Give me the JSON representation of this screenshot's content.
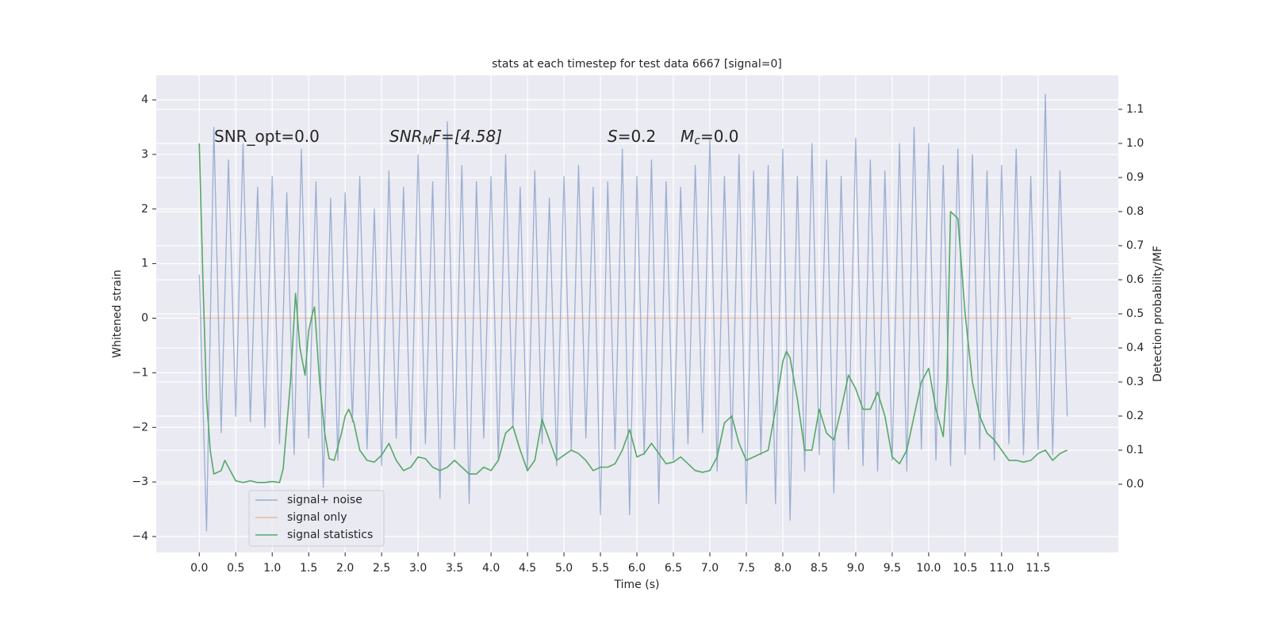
{
  "chart_data": {
    "type": "line",
    "title": "stats at each timestep for test data 6667 [signal=0]",
    "xlabel": "Time (s)",
    "ylabel": "Whitened strain",
    "y2label": "Detection probability/MF",
    "annotations": [
      {
        "base": "SNR_opt=0.0"
      },
      {
        "base": "SNR",
        "sub": "M",
        "rest": "F=[4.58]"
      },
      {
        "base": "S",
        "rest": "=0.2"
      },
      {
        "base": "M",
        "sub": "c",
        "rest": "=0.0"
      }
    ],
    "xlim": [
      -0.59,
      12.6
    ],
    "ylim": [
      -4.29,
      4.45
    ],
    "y2lim": [
      -0.2,
      1.2
    ],
    "xticks": [
      {
        "value": 0,
        "label": "0.0"
      },
      0.5,
      {
        "value": 1,
        "label": "1.0"
      },
      1.5,
      {
        "value": 2,
        "label": "2.0"
      },
      2.5,
      {
        "value": 3,
        "label": "3.0"
      },
      3.5,
      {
        "value": 4,
        "label": "4.0"
      },
      4.5,
      {
        "value": 5,
        "label": "5.0"
      },
      5.5,
      {
        "value": 6,
        "label": "6.0"
      },
      6.5,
      {
        "value": 7,
        "label": "7.0"
      },
      7.5,
      {
        "value": 8,
        "label": "8.0"
      },
      8.5,
      {
        "value": 9,
        "label": "9.0"
      },
      9.5,
      {
        "value": 10,
        "label": "10.0"
      },
      10.5,
      {
        "value": 11,
        "label": "11.0"
      },
      11.5
    ],
    "yticks": [
      {
        "value": -4,
        "label": "−4"
      },
      {
        "value": -3,
        "label": "−3"
      },
      {
        "value": -2,
        "label": "−2"
      },
      {
        "value": -1,
        "label": "−1"
      },
      0,
      1,
      2,
      3,
      4
    ],
    "y2ticks": [
      {
        "value": 0,
        "label": "0.0"
      },
      0.1,
      0.2,
      0.3,
      0.4,
      0.5,
      0.6,
      0.7,
      0.8,
      0.9,
      {
        "value": 1,
        "label": "1.0"
      },
      1.1
    ],
    "grid": true,
    "legend": "lower left",
    "series": [
      {
        "name": "signal+ noise",
        "color": "#4c72b0",
        "opacity": 0.5,
        "x": [
          0,
          0.1,
          0.2,
          0.3,
          0.4,
          0.5,
          0.6,
          0.7,
          0.8,
          0.9,
          1,
          1.1,
          1.2,
          1.3,
          1.4,
          1.5,
          1.6,
          1.7,
          1.8,
          1.9,
          2,
          2.1,
          2.2,
          2.3,
          2.4,
          2.5,
          2.6,
          2.7,
          2.8,
          2.9,
          3,
          3.1,
          3.2,
          3.3,
          3.4,
          3.5,
          3.6,
          3.7,
          3.8,
          3.9,
          4,
          4.1,
          4.2,
          4.3,
          4.4,
          4.5,
          4.6,
          4.7,
          4.8,
          4.9,
          5,
          5.1,
          5.2,
          5.3,
          5.4,
          5.5,
          5.6,
          5.7,
          5.8,
          5.9,
          6,
          6.1,
          6.2,
          6.3,
          6.4,
          6.5,
          6.6,
          6.7,
          6.8,
          6.9,
          7,
          7.1,
          7.2,
          7.3,
          7.4,
          7.5,
          7.6,
          7.7,
          7.8,
          7.9,
          8,
          8.1,
          8.2,
          8.3,
          8.4,
          8.5,
          8.6,
          8.7,
          8.8,
          8.9,
          9,
          9.1,
          9.2,
          9.3,
          9.4,
          9.5,
          9.6,
          9.7,
          9.8,
          9.9,
          10,
          10.1,
          10.2,
          10.3,
          10.4,
          10.5,
          10.6,
          10.7,
          10.8,
          10.9,
          11,
          11.1,
          11.2,
          11.3,
          11.4,
          11.5,
          11.6,
          11.7,
          11.8,
          11.9
        ],
        "values": [
          0.8,
          -3.9,
          3.5,
          -2.1,
          2.9,
          -1.8,
          3.2,
          -1.9,
          2.4,
          -2.0,
          2.6,
          -2.3,
          2.3,
          -2.5,
          3.1,
          -2.2,
          2.5,
          -3.1,
          2.2,
          -2.6,
          2.3,
          -1.9,
          2.6,
          -2.4,
          2.0,
          -2.7,
          2.7,
          -2.2,
          2.4,
          -2.5,
          3.0,
          -2.3,
          2.5,
          -3.3,
          3.6,
          -2.4,
          2.8,
          -3.4,
          2.5,
          -2.2,
          2.6,
          -2.6,
          3.0,
          -2.0,
          2.4,
          -2.8,
          2.7,
          -2.3,
          2.2,
          -2.7,
          2.6,
          -2.4,
          2.8,
          -2.2,
          2.4,
          -3.6,
          2.5,
          -2.4,
          3.1,
          -3.6,
          2.6,
          -2.5,
          2.9,
          -3.4,
          2.5,
          -2.6,
          2.4,
          -2.3,
          2.8,
          -2.1,
          3.3,
          -2.8,
          2.6,
          -2.4,
          3.0,
          -3.4,
          2.7,
          -2.5,
          2.8,
          -3.4,
          3.1,
          -3.7,
          2.6,
          -2.8,
          3.2,
          -2.5,
          2.9,
          -3.2,
          2.6,
          -2.4,
          3.3,
          -2.7,
          2.9,
          -2.8,
          2.7,
          -2.6,
          3.2,
          -2.8,
          3.5,
          -2.4,
          3.2,
          -2.6,
          2.8,
          -2.7,
          3.1,
          -2.5,
          3.0,
          -2.4,
          2.7,
          -2.6,
          2.8,
          -2.3,
          3.1,
          -2.5,
          2.6,
          -2.4,
          4.1,
          -2.5,
          2.7,
          -1.8
        ]
      },
      {
        "name": "signal only",
        "color": "#dd8452",
        "opacity": 0.5,
        "x": [
          0,
          11.95
        ],
        "values": [
          0,
          0
        ]
      },
      {
        "name": "signal statistics",
        "color": "#55a868",
        "opacity": 1,
        "axis": "y2",
        "x": [
          0,
          0.05,
          0.1,
          0.15,
          0.2,
          0.3,
          0.35,
          0.45,
          0.5,
          0.6,
          0.7,
          0.8,
          0.9,
          1.0,
          1.1,
          1.15,
          1.25,
          1.32,
          1.38,
          1.45,
          1.5,
          1.55,
          1.58,
          1.65,
          1.72,
          1.78,
          1.85,
          1.95,
          2.0,
          2.05,
          2.12,
          2.2,
          2.3,
          2.4,
          2.5,
          2.6,
          2.7,
          2.8,
          2.9,
          3.0,
          3.1,
          3.2,
          3.3,
          3.4,
          3.5,
          3.6,
          3.7,
          3.8,
          3.9,
          4.0,
          4.1,
          4.2,
          4.3,
          4.4,
          4.5,
          4.6,
          4.7,
          4.8,
          4.9,
          5.0,
          5.1,
          5.2,
          5.3,
          5.4,
          5.5,
          5.6,
          5.7,
          5.8,
          5.9,
          6.0,
          6.1,
          6.2,
          6.3,
          6.4,
          6.5,
          6.6,
          6.7,
          6.8,
          6.9,
          7.0,
          7.1,
          7.2,
          7.3,
          7.4,
          7.5,
          7.6,
          7.7,
          7.8,
          7.9,
          8.0,
          8.05,
          8.1,
          8.2,
          8.3,
          8.4,
          8.5,
          8.6,
          8.7,
          8.8,
          8.9,
          9.0,
          9.1,
          9.2,
          9.3,
          9.4,
          9.5,
          9.6,
          9.7,
          9.8,
          9.9,
          10.0,
          10.1,
          10.2,
          10.25,
          10.3,
          10.4,
          10.5,
          10.6,
          10.7,
          10.8,
          10.9,
          11.0,
          11.1,
          11.2,
          11.3,
          11.4,
          11.5,
          11.6,
          11.7,
          11.8,
          11.9
        ],
        "values": [
          1.0,
          0.6,
          0.25,
          0.1,
          0.03,
          0.04,
          0.07,
          0.03,
          0.01,
          0.005,
          0.01,
          0.005,
          0.005,
          0.008,
          0.005,
          0.045,
          0.3,
          0.56,
          0.4,
          0.32,
          0.45,
          0.5,
          0.52,
          0.3,
          0.15,
          0.075,
          0.07,
          0.15,
          0.2,
          0.22,
          0.18,
          0.1,
          0.07,
          0.065,
          0.085,
          0.12,
          0.07,
          0.04,
          0.05,
          0.08,
          0.075,
          0.05,
          0.04,
          0.05,
          0.07,
          0.05,
          0.03,
          0.03,
          0.05,
          0.04,
          0.07,
          0.15,
          0.17,
          0.1,
          0.04,
          0.07,
          0.19,
          0.13,
          0.07,
          0.085,
          0.1,
          0.09,
          0.07,
          0.04,
          0.05,
          0.05,
          0.06,
          0.1,
          0.16,
          0.08,
          0.09,
          0.12,
          0.09,
          0.06,
          0.065,
          0.08,
          0.06,
          0.04,
          0.035,
          0.04,
          0.08,
          0.18,
          0.2,
          0.12,
          0.07,
          0.08,
          0.09,
          0.1,
          0.22,
          0.36,
          0.39,
          0.37,
          0.25,
          0.1,
          0.1,
          0.22,
          0.15,
          0.13,
          0.22,
          0.32,
          0.28,
          0.22,
          0.22,
          0.27,
          0.2,
          0.08,
          0.06,
          0.1,
          0.2,
          0.3,
          0.34,
          0.22,
          0.14,
          0.3,
          0.8,
          0.78,
          0.5,
          0.3,
          0.2,
          0.15,
          0.13,
          0.1,
          0.07,
          0.07,
          0.065,
          0.07,
          0.09,
          0.1,
          0.07,
          0.09,
          0.1
        ]
      }
    ]
  }
}
